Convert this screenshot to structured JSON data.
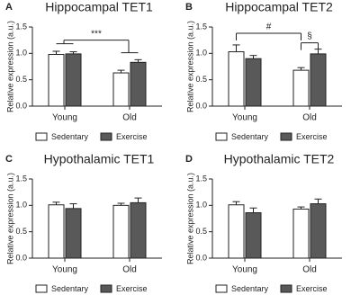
{
  "chart_data": [
    {
      "type": "bar",
      "panel": "A",
      "title": "Hippocampal TET1",
      "ylabel": "Relative expression (a.u.)",
      "categories": [
        "Young",
        "Old"
      ],
      "series": [
        {
          "name": "Sedentary",
          "color": "#ffffff",
          "values": [
            0.98,
            0.63
          ],
          "errors": [
            0.06,
            0.05
          ]
        },
        {
          "name": "Exercise",
          "color": "#595959",
          "values": [
            0.99,
            0.83
          ],
          "errors": [
            0.04,
            0.05
          ]
        }
      ],
      "ylim": [
        0,
        1.5
      ],
      "yticks": [
        {
          "value": 0,
          "label": "0.0"
        },
        {
          "value": 0.5,
          "label": "0.5"
        },
        {
          "value": 1,
          "label": "1.0"
        },
        {
          "value": 1.5,
          "label": "1.5"
        }
      ],
      "annotations": [
        "***"
      ]
    },
    {
      "type": "bar",
      "panel": "B",
      "title": "Hippocampal TET2",
      "ylabel": "Relative expression (a.u.)",
      "categories": [
        "Young",
        "Old"
      ],
      "series": [
        {
          "name": "Sedentary",
          "color": "#ffffff",
          "values": [
            1.03,
            0.68
          ],
          "errors": [
            0.13,
            0.05
          ]
        },
        {
          "name": "Exercise",
          "color": "#595959",
          "values": [
            0.9,
            0.99
          ],
          "errors": [
            0.06,
            0.09
          ]
        }
      ],
      "ylim": [
        0,
        1.5
      ],
      "yticks": [
        {
          "value": 0,
          "label": "0.0"
        },
        {
          "value": 0.5,
          "label": "0.5"
        },
        {
          "value": 1,
          "label": "1.0"
        },
        {
          "value": 1.5,
          "label": "1.5"
        }
      ],
      "annotations": [
        "#",
        "§"
      ]
    },
    {
      "type": "bar",
      "panel": "C",
      "title": "Hypothalamic TET1",
      "ylabel": "Relative expression (a.u.)",
      "categories": [
        "Young",
        "Old"
      ],
      "series": [
        {
          "name": "Sedentary",
          "color": "#ffffff",
          "values": [
            1.01,
            1.0
          ],
          "errors": [
            0.05,
            0.04
          ]
        },
        {
          "name": "Exercise",
          "color": "#595959",
          "values": [
            0.94,
            1.05
          ],
          "errors": [
            0.09,
            0.09
          ]
        }
      ],
      "ylim": [
        0,
        1.5
      ],
      "yticks": [
        {
          "value": 0,
          "label": "0.0"
        },
        {
          "value": 0.5,
          "label": "0.5"
        },
        {
          "value": 1,
          "label": "1.0"
        },
        {
          "value": 1.5,
          "label": "1.5"
        }
      ]
    },
    {
      "type": "bar",
      "panel": "D",
      "title": "Hypothalamic TET2",
      "ylabel": "Relative expression (a.u.)",
      "categories": [
        "Young",
        "Old"
      ],
      "series": [
        {
          "name": "Sedentary",
          "color": "#ffffff",
          "values": [
            1.01,
            0.93
          ],
          "errors": [
            0.06,
            0.04
          ]
        },
        {
          "name": "Exercise",
          "color": "#595959",
          "values": [
            0.86,
            1.03
          ],
          "errors": [
            0.09,
            0.09
          ]
        }
      ],
      "ylim": [
        0,
        1.5
      ],
      "yticks": [
        {
          "value": 0,
          "label": "0.0"
        },
        {
          "value": 0.5,
          "label": "0.5"
        },
        {
          "value": 1,
          "label": "1.0"
        },
        {
          "value": 1.5,
          "label": "1.5"
        }
      ]
    }
  ]
}
